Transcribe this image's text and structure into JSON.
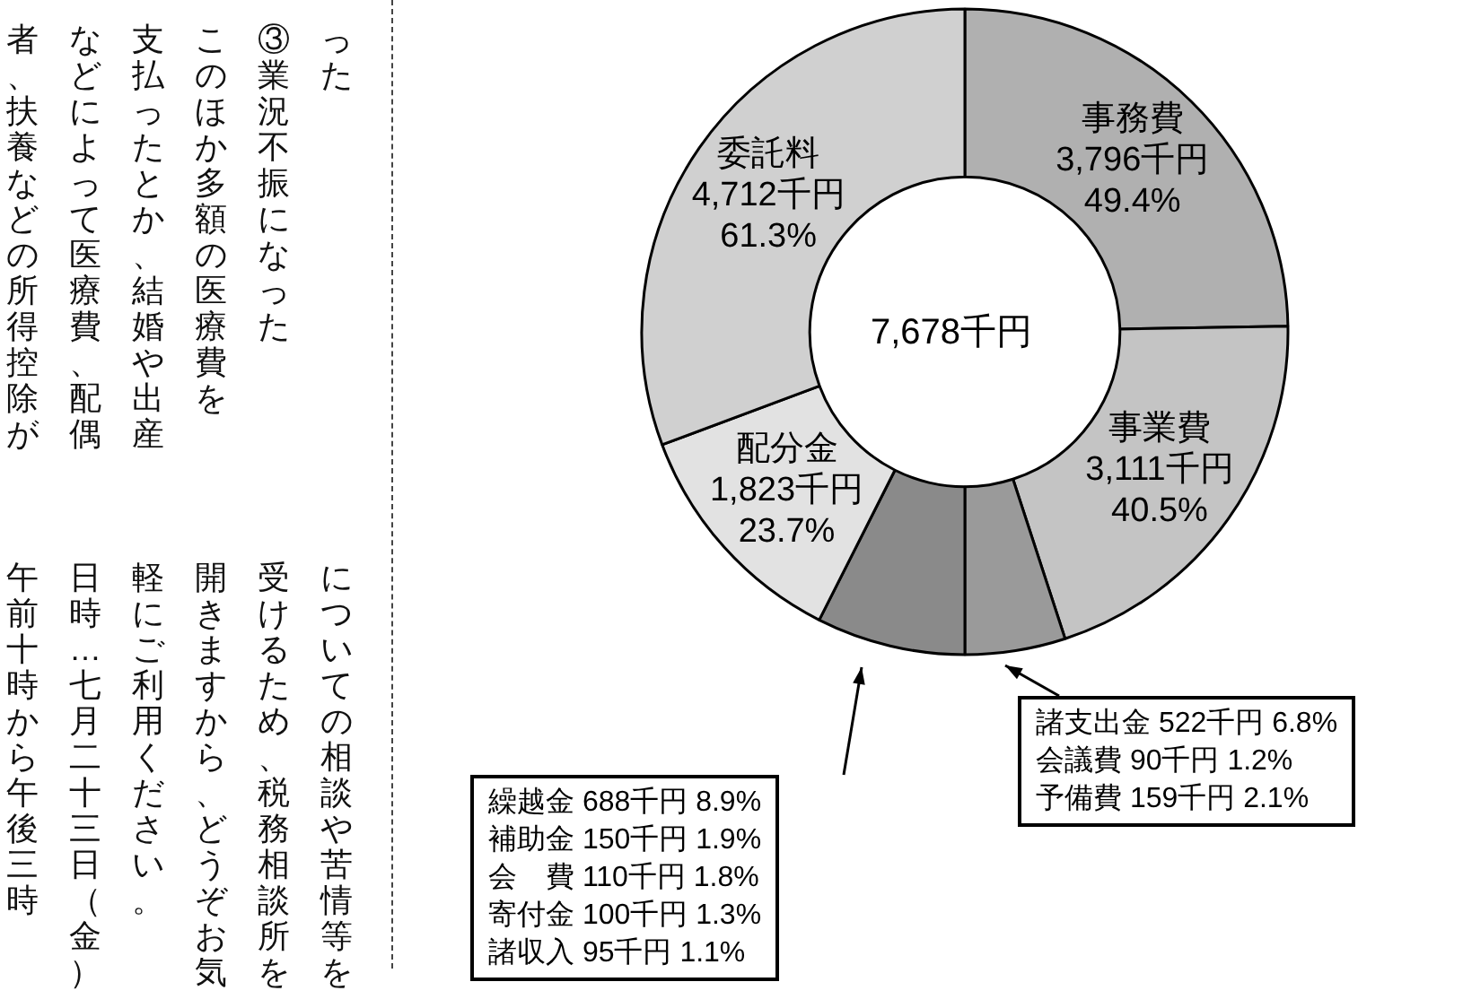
{
  "chart_data": {
    "type": "donut",
    "categories": [
      "事務費",
      "事業費",
      null,
      null,
      "配分金",
      "委託料"
    ],
    "values": [
      3796,
      3111,
      771,
      1143,
      1823,
      4712
    ],
    "colors": [
      "#b0b0b0",
      "#c4c4c4",
      "#9a9a9a",
      "#8a8a8a",
      "#e2e2e2",
      "#d0d0d0"
    ],
    "value_labels": [
      "3,796千円\n49.4%",
      "3,111千円\n40.5%",
      null,
      null,
      "1,823千円\n23.7%",
      "4,712千円\n61.3%"
    ],
    "legend": false,
    "annotations": [
      "7,678千円",
      "繰越金 688千円 8.9%\n補助金 150千円 1.9%\n会　費 110千円 1.8%\n寄付金 100千円 1.3%\n諸収入 95千円 1.1%",
      "諸支出金 522千円 6.8%\n会議費 90千円 1.2%\n予備費 159千円 2.1%",
      "った",
      "③業況不振になった",
      "このほか多額の医療費を",
      "支払ったとか、結婚や出産",
      "などによって医療費、配偶",
      "者、扶養などの所得控除が",
      "についての相談や苦情等を",
      "受けるため、税務相談所を",
      "開きますから、どうぞお気",
      "軽にご利用ください。",
      "日時…七月二十三日（金）",
      "午前十時から午後三時"
    ]
  }
}
